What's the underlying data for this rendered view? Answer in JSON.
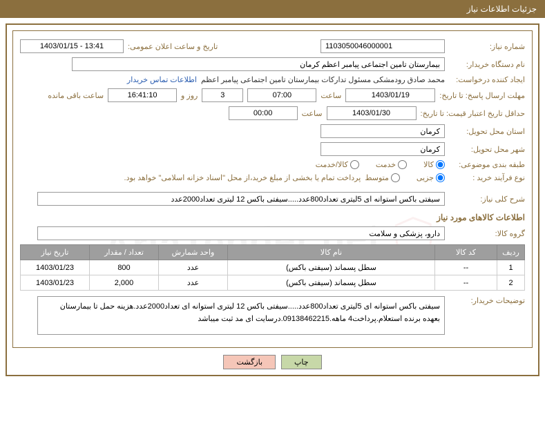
{
  "header_title": "جزئیات اطلاعات نیاز",
  "fields": {
    "need_number": {
      "label": "شماره نیاز:",
      "value": "1103050046000001"
    },
    "announce_date": {
      "label": "تاریخ و ساعت اعلان عمومی:",
      "value": "1403/01/15 - 13:41"
    },
    "buyer_org": {
      "label": "نام دستگاه خریدار:",
      "value": "بیمارستان تامین اجتماعی پیامبر اعظم کرمان"
    },
    "requester": {
      "label": "ایجاد کننده درخواست:",
      "value": "محمد صادق رودمشکی مسئول تدارکات بیمارستان تامین اجتماعی پیامبر اعظم"
    },
    "contact_link": "اطلاعات تماس خریدار",
    "response_deadline": {
      "label": "مهلت ارسال پاسخ: تا تاریخ:",
      "date": "1403/01/19",
      "time_label": "ساعت",
      "time": "07:00",
      "days": "3",
      "days_label": "روز و",
      "remaining": "16:41:10",
      "remaining_label": "ساعت باقی مانده"
    },
    "price_validity": {
      "label": "حداقل تاریخ اعتبار قیمت: تا تاریخ:",
      "date": "1403/01/30",
      "time_label": "ساعت",
      "time": "00:00"
    },
    "delivery_province": {
      "label": "استان محل تحویل:",
      "value": "کرمان"
    },
    "delivery_city": {
      "label": "شهر محل تحویل:",
      "value": "کرمان"
    },
    "category": {
      "label": "طبقه بندی موضوعی:",
      "options": [
        {
          "label": "کالا",
          "checked": true
        },
        {
          "label": "خدمت",
          "checked": false
        },
        {
          "label": "کالا/خدمت",
          "checked": false
        }
      ]
    },
    "purchase_type": {
      "label": "نوع فرآیند خرید :",
      "options": [
        {
          "label": "جزیی",
          "checked": true
        },
        {
          "label": "متوسط",
          "checked": false
        }
      ],
      "note": "پرداخت تمام یا بخشی از مبلغ خرید،از محل \"اسناد خزانه اسلامی\" خواهد بود."
    },
    "general_desc": {
      "label": "شرح کلی نیاز:",
      "value": "سیفتی باکس استوانه ای 5لیتری تعداد800عدد.....سیفتی باکس 12 لیتری تعداد2000عدد"
    },
    "goods_info_title": "اطلاعات کالاهای مورد نیاز",
    "goods_group": {
      "label": "گروه کالا:",
      "value": "دارو، پزشکی و سلامت"
    },
    "buyer_notes": {
      "label": "توضیحات خریدار:",
      "value": "سیفتی باکس استوانه ای 5لیتری تعداد800عدد.....سیفتی باکس 12 لیتری استوانه ای تعداد2000عدد.هزینه حمل تا بیمارستان بعهده برنده استعلام.پرداخت4 ماهه.09138462215.درسایت ای مد ثبت میباشد"
    }
  },
  "table": {
    "headers": [
      "ردیف",
      "کد کالا",
      "نام کالا",
      "واحد شمارش",
      "تعداد / مقدار",
      "تاریخ نیاز"
    ],
    "rows": [
      [
        "1",
        "--",
        "سطل پسماند (سیفتی باکس)",
        "عدد",
        "800",
        "1403/01/23"
      ],
      [
        "2",
        "--",
        "سطل پسماند (سیفتی باکس)",
        "عدد",
        "2,000",
        "1403/01/23"
      ]
    ]
  },
  "buttons": {
    "print": "چاپ",
    "back": "بازگشت"
  },
  "watermark": "AriaTender.net"
}
